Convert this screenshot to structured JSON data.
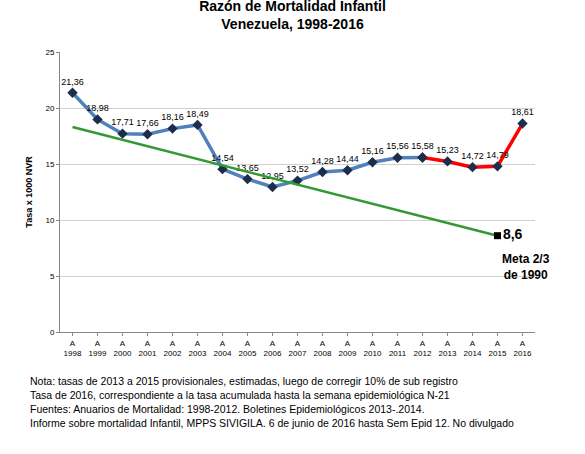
{
  "chart_data": {
    "type": "line",
    "title": "Razón de Mortalidad Infantil",
    "subtitle": "Venezuela, 1998-2016",
    "y_label": "Tasa x 1000 NVR",
    "categories": [
      "A\n1998",
      "A\n1999",
      "A\n2000",
      "A\n2001",
      "A\n2002",
      "A\n2003",
      "A\n2004",
      "A\n2005",
      "A\n2006",
      "A\n2007",
      "A\n2008",
      "A\n2009",
      "A\n2010",
      "A\n2011",
      "A\n2012",
      "A\n2013",
      "A\n2014",
      "A\n2015",
      "A\n2016"
    ],
    "ylim": [
      0,
      25
    ],
    "yticks": [
      0,
      5,
      10,
      15,
      20,
      25
    ],
    "grid": true,
    "data_labels": true,
    "series": [
      {
        "color": "#4f81bd",
        "marker": "diamond",
        "values": [
          21.36,
          18.98,
          17.71,
          17.66,
          18.16,
          18.49,
          14.54,
          13.65,
          12.95,
          13.52,
          14.28,
          14.44,
          15.16,
          15.56,
          15.58,
          null,
          null,
          null,
          null
        ],
        "value_labels": [
          "21,36",
          "18,98",
          "17,71",
          "17,66",
          "18,16",
          "18,49",
          "14,54",
          "13,65",
          "12,95",
          "13,52",
          "14,28",
          "14,44",
          "15,16",
          "15,56",
          "15,58",
          null,
          null,
          null,
          null
        ]
      },
      {
        "color": "#ff0000",
        "marker": "diamond",
        "values": [
          null,
          null,
          null,
          null,
          null,
          null,
          null,
          null,
          null,
          null,
          null,
          null,
          null,
          null,
          15.58,
          15.23,
          14.72,
          14.79,
          18.61
        ],
        "value_labels": [
          null,
          null,
          null,
          null,
          null,
          null,
          null,
          null,
          null,
          null,
          null,
          null,
          null,
          null,
          null,
          "15,23",
          "14,72",
          "14,79",
          "18,61"
        ]
      },
      {
        "color": "#339933",
        "marker": "none",
        "values": [
          18.3,
          null,
          null,
          null,
          null,
          null,
          null,
          null,
          null,
          null,
          null,
          null,
          null,
          null,
          null,
          null,
          null,
          8.6,
          null
        ]
      },
      {
        "color": "#000000",
        "marker": "square",
        "values": [
          null,
          null,
          null,
          null,
          null,
          null,
          null,
          null,
          null,
          null,
          null,
          null,
          null,
          null,
          null,
          null,
          null,
          8.6,
          null
        ],
        "value_labels": [
          null,
          null,
          null,
          null,
          null,
          null,
          null,
          null,
          null,
          null,
          null,
          null,
          null,
          null,
          null,
          null,
          null,
          "8,6",
          null
        ]
      }
    ],
    "annotations": [
      "Meta 2/3\nde 1990"
    ],
    "notes": [
      "Nota: tasas de 2013 a 2015 provisionales, estimadas, luego de corregir 10% de sub registro",
      "Tasa de 2016, correspondiente a la tasa acumulada hasta la semana epidemiológica N-21",
      "Fuentes: Anuarios de Mortalidad: 1998-2012. Boletines Epidemiológicos 2013-.2014.",
      "Informe sobre mortalidad Infantil, MPPS SIVIGILA. 6 de junio de 2016 hasta Sem Epid 12. No divulgado"
    ]
  }
}
